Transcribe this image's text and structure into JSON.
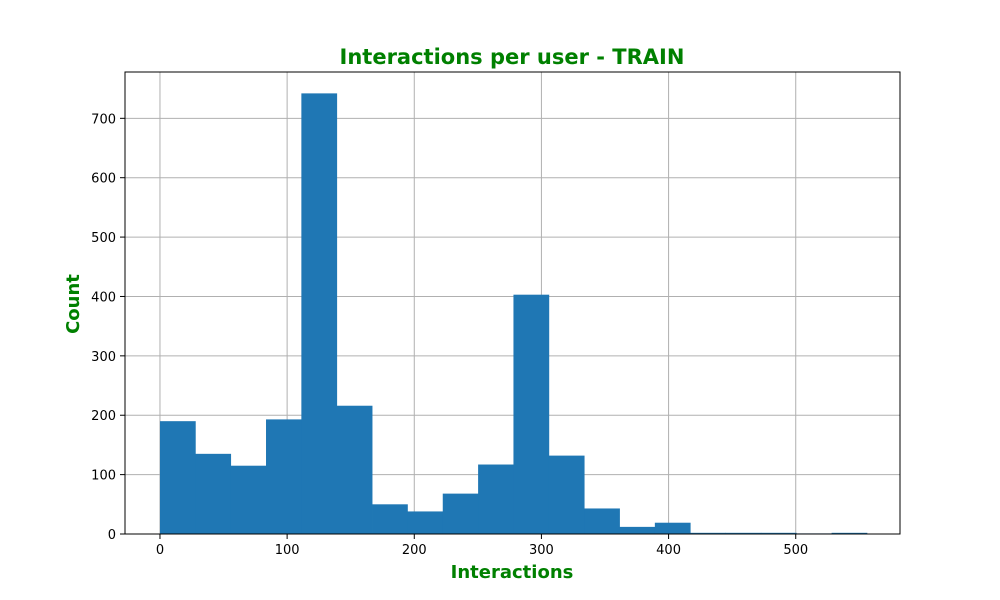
{
  "chart_data": {
    "type": "bar",
    "title": "Interactions per user - TRAIN",
    "xlabel": "Interactions",
    "ylabel": "Count",
    "xlim": [
      -27.5,
      582
    ],
    "ylim": [
      0,
      778
    ],
    "xticks": [
      0,
      100,
      200,
      300,
      400,
      500
    ],
    "yticks": [
      0,
      100,
      200,
      300,
      400,
      500,
      600,
      700
    ],
    "bin_edges": [
      0,
      27.8,
      55.6,
      83.4,
      111.2,
      139,
      166.8,
      194.6,
      222.4,
      250.2,
      278,
      305.8,
      333.6,
      361.4,
      389.2,
      417,
      444.8,
      472.6,
      500.4,
      528.2,
      556
    ],
    "values": [
      190,
      135,
      115,
      193,
      742,
      216,
      50,
      38,
      68,
      117,
      403,
      132,
      43,
      12,
      19,
      2,
      2,
      2,
      1,
      2
    ],
    "grid": true,
    "colors": {
      "bar": "#1f77b4",
      "title": "#008000",
      "axis_labels": "#008000",
      "grid": "#b0b0b0"
    }
  }
}
